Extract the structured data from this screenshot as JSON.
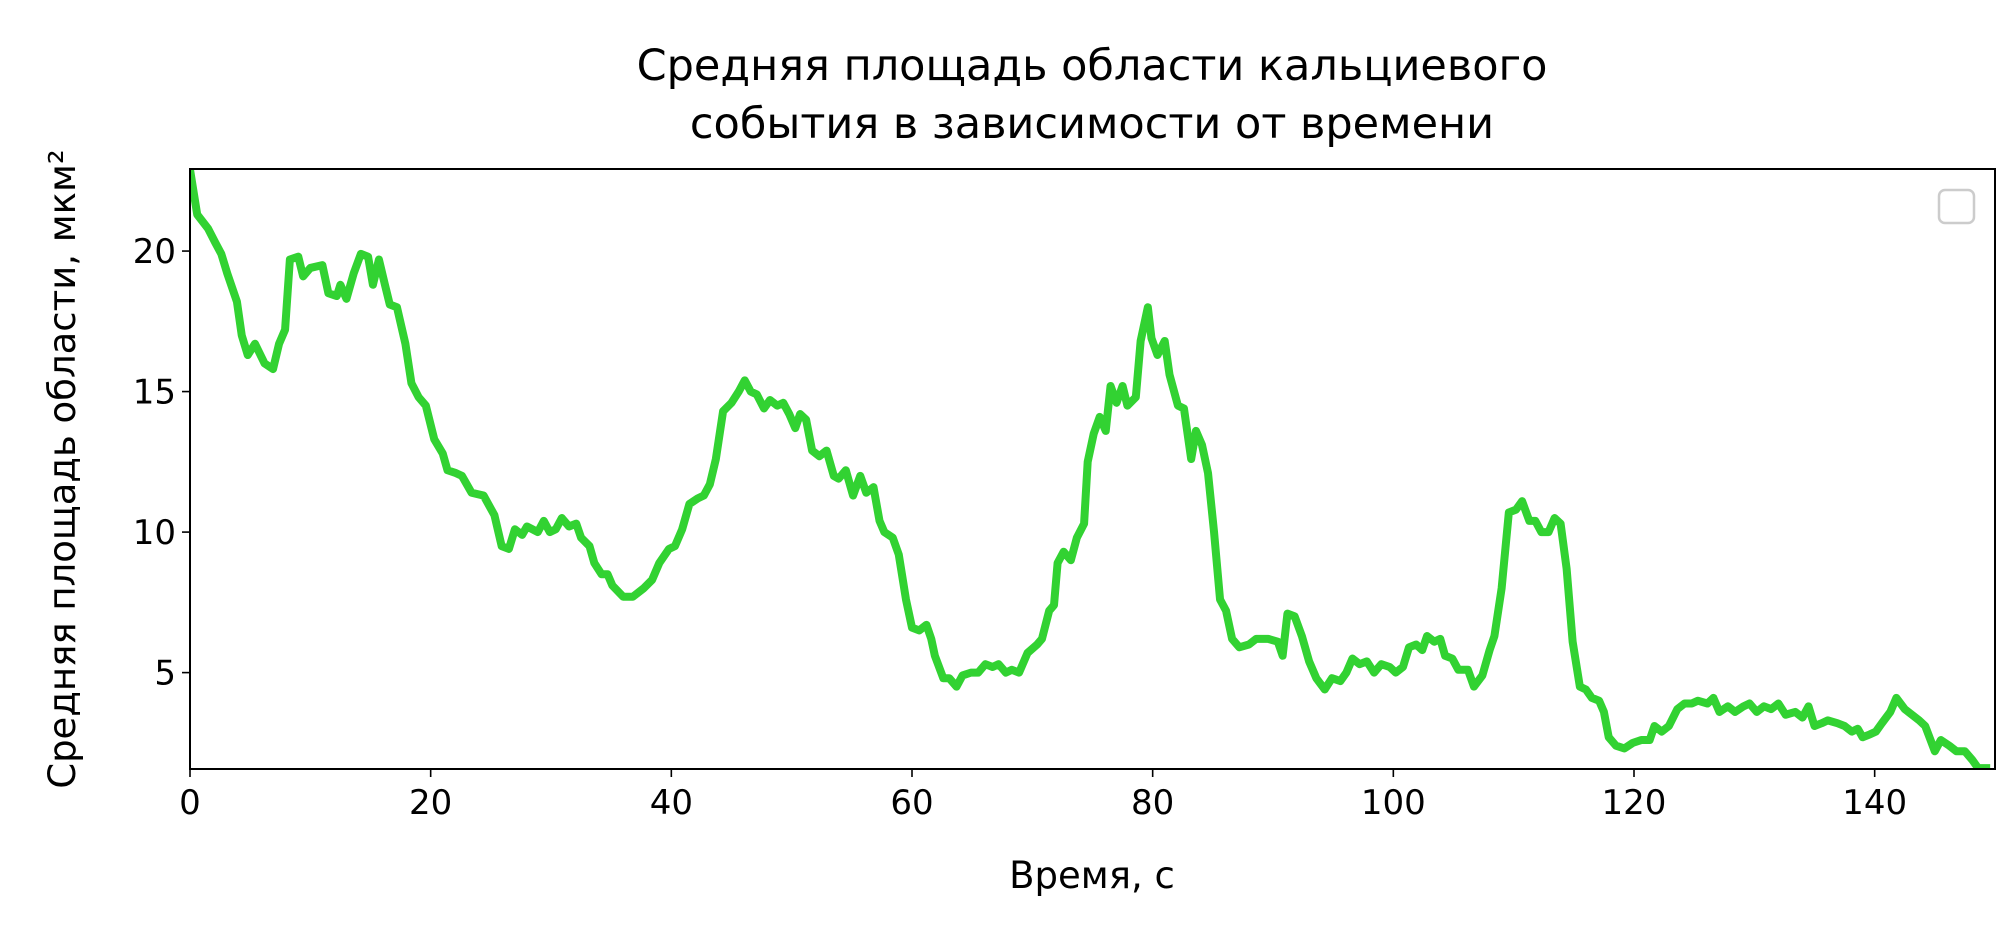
{
  "chart_data": {
    "type": "line",
    "title": "Средняя площадь области кальциевого\nсобытия в зависимости от времени",
    "x_label": "Время, с",
    "y_label": "Средняя площадь области, мкм²",
    "color": "#32d232",
    "xlim": [
      0,
      150
    ],
    "ylim": [
      1.57,
      22.92
    ],
    "xticks": [
      0,
      20,
      40,
      60,
      80,
      100,
      120,
      140
    ],
    "yticks": [
      5,
      10,
      15,
      20
    ],
    "legend": "upper right",
    "x": [
      0,
      0.6,
      1.5,
      2.1,
      2.6,
      3.1,
      3.9,
      4.3,
      4.8,
      5.4,
      6.2,
      6.9,
      7.4,
      7.9,
      8.3,
      9.0,
      9.4,
      10.0,
      11.0,
      11.5,
      12.2,
      12.5,
      13.0,
      13.6,
      14.2,
      14.8,
      15.2,
      15.7,
      16.2,
      16.6,
      17.2,
      17.9,
      18.4,
      19.0,
      19.6,
      20.3,
      21.0,
      21.4,
      22.1,
      22.6,
      23.4,
      24.4,
      25.3,
      25.9,
      26.5,
      27.0,
      27.6,
      28.0,
      28.9,
      29.4,
      29.9,
      30.4,
      30.9,
      31.5,
      32.1,
      32.5,
      33.2,
      33.6,
      34.2,
      34.7,
      35.1,
      36.0,
      36.8,
      37.7,
      38.4,
      39.0,
      39.8,
      40.3,
      40.9,
      41.5,
      42.2,
      42.7,
      43.2,
      43.7,
      44.3,
      45.0,
      45.6,
      46.1,
      46.6,
      47.1,
      47.7,
      48.2,
      48.8,
      49.3,
      49.8,
      50.3,
      50.7,
      51.2,
      51.7,
      52.3,
      52.9,
      53.5,
      53.9,
      54.5,
      55.1,
      55.7,
      56.2,
      56.8,
      57.3,
      57.7,
      58.4,
      58.9,
      59.5,
      60.0,
      60.6,
      61.2,
      61.6,
      61.9,
      62.6,
      63.1,
      63.7,
      64.2,
      64.9,
      65.5,
      66.1,
      66.7,
      67.2,
      67.8,
      68.3,
      68.9,
      69.6,
      70.4,
      70.8,
      71.4,
      71.8,
      72.1,
      72.6,
      73.2,
      73.7,
      74.3,
      74.6,
      75.1,
      75.6,
      76.1,
      76.5,
      77.0,
      77.5,
      77.9,
      78.6,
      79.0,
      79.6,
      79.9,
      80.4,
      81.0,
      81.4,
      82.1,
      82.6,
      83.2,
      83.6,
      84.1,
      84.6,
      85.1,
      85.6,
      86.1,
      86.6,
      87.2,
      88.0,
      88.6,
      89.6,
      90.4,
      90.8,
      91.2,
      91.8,
      92.4,
      93.0,
      93.6,
      94.3,
      94.9,
      95.6,
      96.1,
      96.6,
      97.2,
      97.8,
      98.4,
      99.0,
      99.7,
      100.2,
      100.8,
      101.3,
      101.9,
      102.4,
      102.8,
      103.4,
      103.9,
      104.3,
      104.9,
      105.4,
      106.2,
      106.7,
      107.4,
      108.0,
      108.4,
      109.0,
      109.6,
      110.2,
      110.7,
      111.3,
      111.8,
      112.3,
      112.9,
      113.4,
      113.9,
      114.4,
      114.9,
      115.5,
      116.0,
      116.5,
      117.1,
      117.5,
      117.9,
      118.5,
      119.2,
      119.9,
      120.6,
      121.3,
      121.7,
      122.3,
      122.9,
      123.6,
      124.2,
      124.8,
      125.3,
      126.1,
      126.6,
      127.1,
      127.8,
      128.4,
      129.1,
      129.6,
      130.2,
      130.8,
      131.4,
      132.0,
      132.6,
      133.4,
      134.0,
      134.5,
      135.0,
      135.6,
      136.1,
      136.9,
      137.5,
      138.1,
      138.6,
      139.0,
      139.6,
      140.1,
      140.6,
      141.3,
      141.8,
      142.5,
      143.1,
      143.7,
      144.2,
      145.0,
      145.5,
      146.2,
      146.8,
      147.5,
      148.1,
      148.6,
      149.6
    ],
    "values": [
      22.9,
      21.3,
      20.8,
      20.3,
      19.9,
      19.2,
      18.2,
      17.0,
      16.3,
      16.7,
      16.0,
      15.8,
      16.7,
      17.2,
      19.7,
      19.8,
      19.1,
      19.4,
      19.5,
      18.5,
      18.4,
      18.8,
      18.3,
      19.2,
      19.9,
      19.8,
      18.8,
      19.7,
      18.8,
      18.1,
      18.0,
      16.7,
      15.3,
      14.8,
      14.5,
      13.3,
      12.8,
      12.2,
      12.1,
      12.0,
      11.4,
      11.3,
      10.6,
      9.5,
      9.4,
      10.1,
      9.9,
      10.2,
      10.0,
      10.4,
      10.0,
      10.1,
      10.5,
      10.2,
      10.3,
      9.8,
      9.5,
      8.9,
      8.5,
      8.5,
      8.1,
      7.7,
      7.7,
      8.0,
      8.3,
      8.9,
      9.4,
      9.5,
      10.1,
      11.0,
      11.2,
      11.3,
      11.7,
      12.6,
      14.3,
      14.6,
      15.0,
      15.4,
      15.0,
      14.9,
      14.4,
      14.7,
      14.5,
      14.6,
      14.2,
      13.7,
      14.2,
      14.0,
      12.9,
      12.7,
      12.9,
      12.0,
      11.9,
      12.2,
      11.3,
      12.0,
      11.4,
      11.6,
      10.4,
      10.0,
      9.8,
      9.2,
      7.6,
      6.6,
      6.5,
      6.7,
      6.2,
      5.6,
      4.8,
      4.8,
      4.5,
      4.9,
      5.0,
      5.0,
      5.3,
      5.2,
      5.3,
      5.0,
      5.1,
      5.0,
      5.7,
      6.0,
      6.2,
      7.2,
      7.4,
      8.9,
      9.3,
      9.0,
      9.8,
      10.3,
      12.5,
      13.5,
      14.1,
      13.6,
      15.2,
      14.6,
      15.2,
      14.5,
      14.8,
      16.8,
      18.0,
      16.9,
      16.3,
      16.8,
      15.6,
      14.5,
      14.4,
      12.6,
      13.6,
      13.1,
      12.1,
      10.0,
      7.6,
      7.2,
      6.2,
      5.9,
      6.0,
      6.2,
      6.2,
      6.1,
      5.6,
      7.1,
      7.0,
      6.3,
      5.4,
      4.8,
      4.4,
      4.8,
      4.7,
      5.0,
      5.5,
      5.3,
      5.4,
      5.0,
      5.3,
      5.2,
      5.0,
      5.2,
      5.9,
      6.0,
      5.8,
      6.3,
      6.1,
      6.2,
      5.6,
      5.5,
      5.1,
      5.1,
      4.5,
      4.9,
      5.8,
      6.3,
      8.0,
      10.7,
      10.8,
      11.1,
      10.4,
      10.4,
      10.0,
      10.0,
      10.5,
      10.3,
      8.7,
      6.1,
      4.5,
      4.4,
      4.1,
      4.0,
      3.6,
      2.7,
      2.4,
      2.3,
      2.5,
      2.6,
      2.6,
      3.1,
      2.9,
      3.1,
      3.7,
      3.9,
      3.9,
      4.0,
      3.9,
      4.1,
      3.6,
      3.8,
      3.6,
      3.8,
      3.9,
      3.6,
      3.8,
      3.7,
      3.9,
      3.5,
      3.6,
      3.4,
      3.8,
      3.1,
      3.2,
      3.3,
      3.2,
      3.1,
      2.9,
      3.0,
      2.7,
      2.8,
      2.9,
      3.2,
      3.6,
      4.1,
      3.7,
      3.5,
      3.3,
      3.1,
      2.2,
      2.6,
      2.4,
      2.2,
      2.2,
      1.9,
      1.6,
      1.6
    ]
  }
}
